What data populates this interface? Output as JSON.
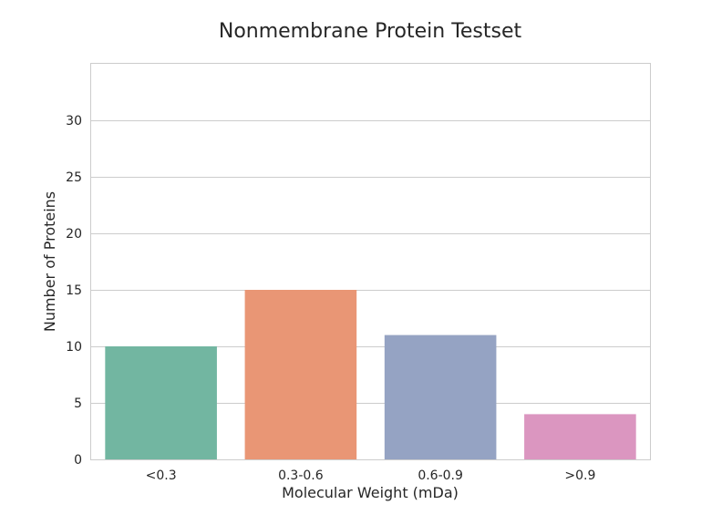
{
  "chart_data": {
    "type": "bar",
    "title": "Nonmembrane Protein Testset",
    "xlabel": "Molecular Weight (mDa)",
    "ylabel": "Number of Proteins",
    "categories": [
      "<0.3",
      "0.3-0.6",
      "0.6-0.9",
      ">0.9"
    ],
    "values": [
      10,
      15,
      11,
      4
    ],
    "colors": [
      "#72b6a1",
      "#e99675",
      "#95a3c3",
      "#db96c0"
    ],
    "ylim": [
      0,
      35
    ],
    "yticks": [
      0,
      5,
      10,
      15,
      20,
      25,
      30
    ],
    "grid": true,
    "legend": "none"
  }
}
